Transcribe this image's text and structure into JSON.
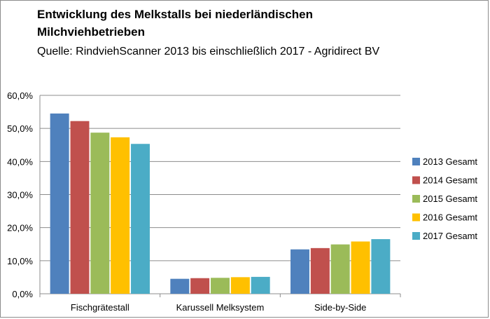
{
  "chart_data": {
    "type": "bar",
    "title_lines": [
      "Entwicklung des Melkstalls bei niederländischen",
      "Milchviehbetrieben"
    ],
    "subtitle": "Quelle:  RindviehScanner  2013 bis einschließlich  2017 - Agridirect  BV",
    "categories": [
      "Fischgrätestall",
      "Karussell Melksystem",
      "Side-by-Side"
    ],
    "series": [
      {
        "name": "2013 Gesamt",
        "values": [
          54.5,
          4.5,
          13.4
        ],
        "color": "#4f81bd"
      },
      {
        "name": "2014 Gesamt",
        "values": [
          52.2,
          4.7,
          13.8
        ],
        "color": "#c0504d"
      },
      {
        "name": "2015 Gesamt",
        "values": [
          48.7,
          4.8,
          14.9
        ],
        "color": "#9bbb59"
      },
      {
        "name": "2016 Gesamt",
        "values": [
          47.3,
          5.0,
          15.8
        ],
        "color": "#ffc000"
      },
      {
        "name": "2017 Gesamt",
        "values": [
          45.3,
          5.1,
          16.5
        ],
        "color": "#4bacc6"
      }
    ],
    "ylim": [
      0,
      60
    ],
    "yticks": [
      "0,0%",
      "10,0%",
      "20,0%",
      "30,0%",
      "40,0%",
      "50,0%",
      "60,0%"
    ],
    "ytick_values": [
      0,
      10,
      20,
      30,
      40,
      50,
      60
    ],
    "grid": true,
    "legend_position": "right"
  }
}
